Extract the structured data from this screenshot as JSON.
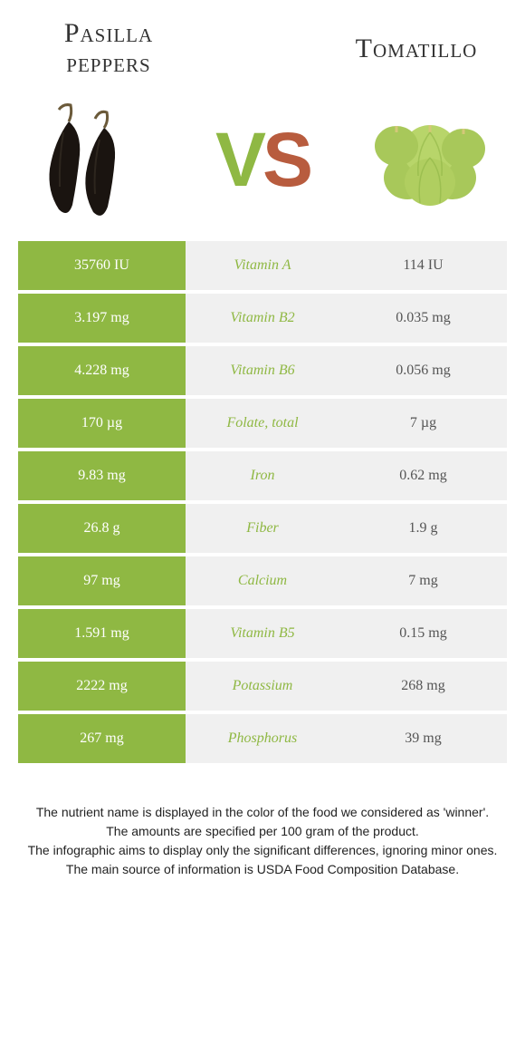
{
  "header": {
    "left_title": "Pasilla peppers",
    "right_title": "Tomatillo",
    "vs_v": "V",
    "vs_s": "S"
  },
  "colors": {
    "left_winner_bg": "#8fb843",
    "left_winner_text": "#ffffff",
    "mid_bg": "#f0f0f0",
    "mid_text_left_winner": "#8fb843",
    "right_bg": "#f0f0f0",
    "right_text": "#555555",
    "row_gap_color": "#ffffff"
  },
  "nutrients": [
    {
      "label": "Vitamin A",
      "left": "35760 IU",
      "right": "114 IU",
      "winner": "left"
    },
    {
      "label": "Vitamin B2",
      "left": "3.197 mg",
      "right": "0.035 mg",
      "winner": "left"
    },
    {
      "label": "Vitamin B6",
      "left": "4.228 mg",
      "right": "0.056 mg",
      "winner": "left"
    },
    {
      "label": "Folate, total",
      "left": "170 µg",
      "right": "7 µg",
      "winner": "left"
    },
    {
      "label": "Iron",
      "left": "9.83 mg",
      "right": "0.62 mg",
      "winner": "left"
    },
    {
      "label": "Fiber",
      "left": "26.8 g",
      "right": "1.9 g",
      "winner": "left"
    },
    {
      "label": "Calcium",
      "left": "97 mg",
      "right": "7 mg",
      "winner": "left"
    },
    {
      "label": "Vitamin B5",
      "left": "1.591 mg",
      "right": "0.15 mg",
      "winner": "left"
    },
    {
      "label": "Potassium",
      "left": "2222 mg",
      "right": "268 mg",
      "winner": "left"
    },
    {
      "label": "Phosphorus",
      "left": "267 mg",
      "right": "39 mg",
      "winner": "left"
    }
  ],
  "footer": {
    "line1": "The nutrient name is displayed in the color of the food we considered as 'winner'.",
    "line2": "The amounts are specified per 100 gram of the product.",
    "line3": "The infographic aims to display only the significant differences, ignoring minor ones.",
    "line4": "The main source of information is USDA Food Composition Database."
  },
  "illustrations": {
    "pasilla_colors": {
      "body": "#1a1410",
      "stem": "#6b5a3a",
      "highlight": "#3a3228"
    },
    "tomatillo_colors": {
      "body": "#a8c85a",
      "shadow": "#7fa038",
      "stem": "#d4c878"
    }
  }
}
